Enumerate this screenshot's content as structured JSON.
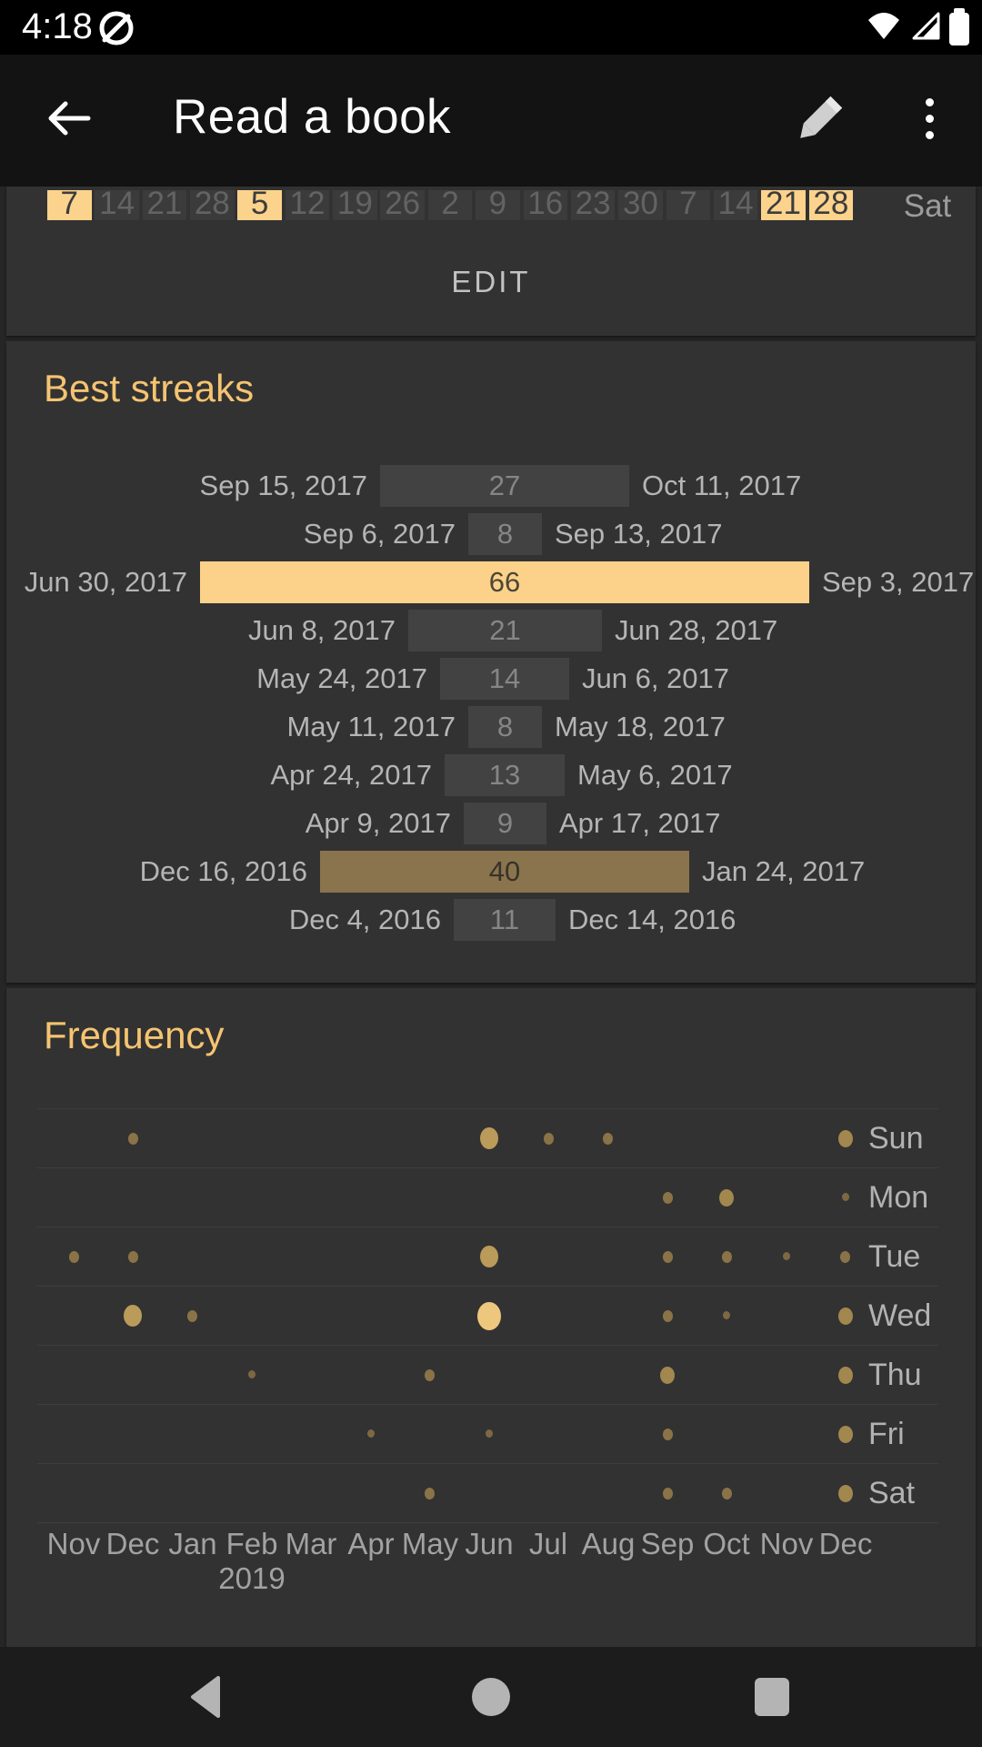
{
  "status_bar": {
    "time": "4:18"
  },
  "app_bar": {
    "title": "Read a book"
  },
  "colors": {
    "accent_title": "#f5c471",
    "highlight": "#fcd28a",
    "strong_bar": "#8a744d",
    "normal_bar": "#424242",
    "card_bg": "#323232",
    "dot_levels": {
      "1": "#7e6843",
      "2": "#8b7348",
      "3": "#a2874e",
      "4": "#ba9b59",
      "5": "#eec77e"
    }
  },
  "calendar": {
    "weekday_label": "Sat",
    "edit_label": "EDIT",
    "days": [
      {
        "label": "7",
        "highlighted": true
      },
      {
        "label": "14",
        "highlighted": false
      },
      {
        "label": "21",
        "highlighted": false
      },
      {
        "label": "28",
        "highlighted": false
      },
      {
        "label": "5",
        "highlighted": true
      },
      {
        "label": "12",
        "highlighted": false
      },
      {
        "label": "19",
        "highlighted": false
      },
      {
        "label": "26",
        "highlighted": false
      },
      {
        "label": "2",
        "highlighted": false
      },
      {
        "label": "9",
        "highlighted": false
      },
      {
        "label": "16",
        "highlighted": false
      },
      {
        "label": "23",
        "highlighted": false
      },
      {
        "label": "30",
        "highlighted": false
      },
      {
        "label": "7",
        "highlighted": false
      },
      {
        "label": "14",
        "highlighted": false
      },
      {
        "label": "21",
        "highlighted": true
      },
      {
        "label": "28",
        "highlighted": true
      }
    ]
  },
  "streaks": {
    "title": "Best streaks",
    "max_value": 66,
    "items": [
      {
        "start": "Sep 15, 2017",
        "value": 27,
        "end": "Oct 11, 2017",
        "style": "normal"
      },
      {
        "start": "Sep 6, 2017",
        "value": 8,
        "end": "Sep 13, 2017",
        "style": "normal"
      },
      {
        "start": "Jun 30, 2017",
        "value": 66,
        "end": "Sep 3, 2017",
        "style": "best"
      },
      {
        "start": "Jun 8, 2017",
        "value": 21,
        "end": "Jun 28, 2017",
        "style": "normal"
      },
      {
        "start": "May 24, 2017",
        "value": 14,
        "end": "Jun 6, 2017",
        "style": "normal"
      },
      {
        "start": "May 11, 2017",
        "value": 8,
        "end": "May 18, 2017",
        "style": "normal"
      },
      {
        "start": "Apr 24, 2017",
        "value": 13,
        "end": "May 6, 2017",
        "style": "normal"
      },
      {
        "start": "Apr 9, 2017",
        "value": 9,
        "end": "Apr 17, 2017",
        "style": "normal"
      },
      {
        "start": "Dec 16, 2016",
        "value": 40,
        "end": "Jan 24, 2017",
        "style": "strong"
      },
      {
        "start": "Dec 4, 2016",
        "value": 11,
        "end": "Dec 14, 2016",
        "style": "normal"
      }
    ]
  },
  "frequency": {
    "title": "Frequency",
    "months": [
      "Nov",
      "Dec",
      "Jan",
      "Feb",
      "Mar",
      "Apr",
      "May",
      "Jun",
      "Jul",
      "Aug",
      "Sep",
      "Oct",
      "Nov",
      "Dec"
    ],
    "year_label": "2019",
    "year_month_index": 3,
    "rows": [
      {
        "day": "Sun",
        "dots": [
          {
            "month": 1,
            "level": 2
          },
          {
            "month": 7,
            "level": 4
          },
          {
            "month": 8,
            "level": 2
          },
          {
            "month": 9,
            "level": 2
          },
          {
            "month": 13,
            "level": 3
          }
        ]
      },
      {
        "day": "Mon",
        "dots": [
          {
            "month": 10,
            "level": 2
          },
          {
            "month": 11,
            "level": 3
          },
          {
            "month": 13,
            "level": 1
          }
        ]
      },
      {
        "day": "Tue",
        "dots": [
          {
            "month": 0,
            "level": 2
          },
          {
            "month": 1,
            "level": 2
          },
          {
            "month": 7,
            "level": 4
          },
          {
            "month": 10,
            "level": 2
          },
          {
            "month": 11,
            "level": 2
          },
          {
            "month": 12,
            "level": 1
          },
          {
            "month": 13,
            "level": 2
          }
        ]
      },
      {
        "day": "Wed",
        "dots": [
          {
            "month": 1,
            "level": 4
          },
          {
            "month": 2,
            "level": 2
          },
          {
            "month": 7,
            "level": 5
          },
          {
            "month": 10,
            "level": 2
          },
          {
            "month": 11,
            "level": 1
          },
          {
            "month": 13,
            "level": 3
          }
        ]
      },
      {
        "day": "Thu",
        "dots": [
          {
            "month": 3,
            "level": 1
          },
          {
            "month": 6,
            "level": 2
          },
          {
            "month": 10,
            "level": 3
          },
          {
            "month": 13,
            "level": 3
          }
        ]
      },
      {
        "day": "Fri",
        "dots": [
          {
            "month": 5,
            "level": 1
          },
          {
            "month": 7,
            "level": 1
          },
          {
            "month": 10,
            "level": 2
          },
          {
            "month": 13,
            "level": 3
          }
        ]
      },
      {
        "day": "Sat",
        "dots": [
          {
            "month": 6,
            "level": 2
          },
          {
            "month": 10,
            "level": 2
          },
          {
            "month": 11,
            "level": 2
          },
          {
            "month": 13,
            "level": 3
          }
        ]
      }
    ]
  }
}
